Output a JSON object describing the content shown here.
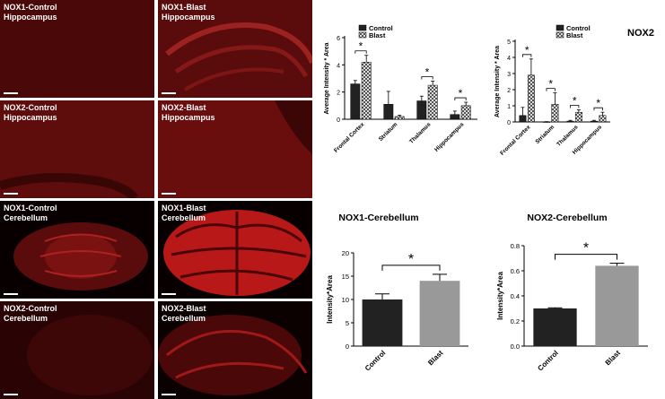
{
  "panels": [
    {
      "line1": "NOX1-Control",
      "line2": "Hippocampus"
    },
    {
      "line1": "NOX1-Blast",
      "line2": "Hippocampus"
    },
    {
      "line1": "NOX2-Control",
      "line2": "Hippocampus"
    },
    {
      "line1": "NOX2-Blast",
      "line2": "Hippocampus"
    },
    {
      "line1": "NOX1-Control",
      "line2": "Cerebellum"
    },
    {
      "line1": "NOX1-Blast",
      "line2": "Cerebellum"
    },
    {
      "line1": "NOX2-Control",
      "line2": "Cerebellum"
    },
    {
      "line1": "NOX2-Blast",
      "line2": "Cerebellum"
    }
  ],
  "colors": {
    "control_bar": "#222222",
    "blast_bar": "#999999",
    "stain": "#e02020"
  },
  "chart_data": [
    {
      "type": "bar",
      "title": "",
      "ylabel": "Average Intensity * Area",
      "ylim": [
        0,
        6
      ],
      "yticks": [
        "0",
        "2",
        "4",
        "6"
      ],
      "categories": [
        "Frontal Cortex",
        "Striatum",
        "Thalamus",
        "Hippocampus"
      ],
      "series": [
        {
          "name": "Control",
          "values": [
            2.6,
            1.1,
            1.35,
            0.35
          ],
          "errors": [
            0.25,
            0.95,
            0.35,
            0.25
          ]
        },
        {
          "name": "Blast",
          "values": [
            4.2,
            0.2,
            2.5,
            1.0
          ],
          "errors": [
            0.5,
            0.1,
            0.3,
            0.25
          ]
        }
      ],
      "significance": [
        "*",
        "",
        "*",
        "*"
      ],
      "legend": "top"
    },
    {
      "type": "bar",
      "title": "NOX2",
      "ylabel": "Average Intensity * Area",
      "ylim": [
        0,
        5
      ],
      "yticks": [
        "0",
        "1",
        "2",
        "3",
        "4",
        "5"
      ],
      "categories": [
        "Frontal Cortex",
        "Striatum",
        "Thalamus",
        "Hippocampus"
      ],
      "series": [
        {
          "name": "Control",
          "values": [
            0.4,
            0.0,
            0.05,
            0.05
          ],
          "errors": [
            0.5,
            0.02,
            0.05,
            0.05
          ]
        },
        {
          "name": "Blast",
          "values": [
            2.9,
            1.1,
            0.6,
            0.4
          ],
          "errors": [
            1.0,
            0.7,
            0.15,
            0.2
          ]
        }
      ],
      "significance": [
        "*",
        "*",
        "*",
        "*"
      ],
      "legend": "top-right"
    },
    {
      "type": "bar",
      "title": "NOX1-Cerebellum",
      "ylabel": "Intensity*Area",
      "ylim": [
        0,
        20
      ],
      "yticks": [
        "0",
        "5",
        "10",
        "15",
        "20"
      ],
      "categories": [
        "Control",
        "Blast"
      ],
      "values": [
        10.0,
        14.0
      ],
      "errors": [
        1.2,
        1.4
      ],
      "significance": "*"
    },
    {
      "type": "bar",
      "title": "NOX2-Cerebellum",
      "ylabel": "Intensity*Area",
      "ylim": [
        0,
        0.8
      ],
      "yticks": [
        "0.0",
        "0.2",
        "0.4",
        "0.6",
        "0.8"
      ],
      "categories": [
        "Control",
        "Blast"
      ],
      "values": [
        0.3,
        0.64
      ],
      "errors": [
        0.005,
        0.02
      ],
      "significance": "*"
    }
  ]
}
